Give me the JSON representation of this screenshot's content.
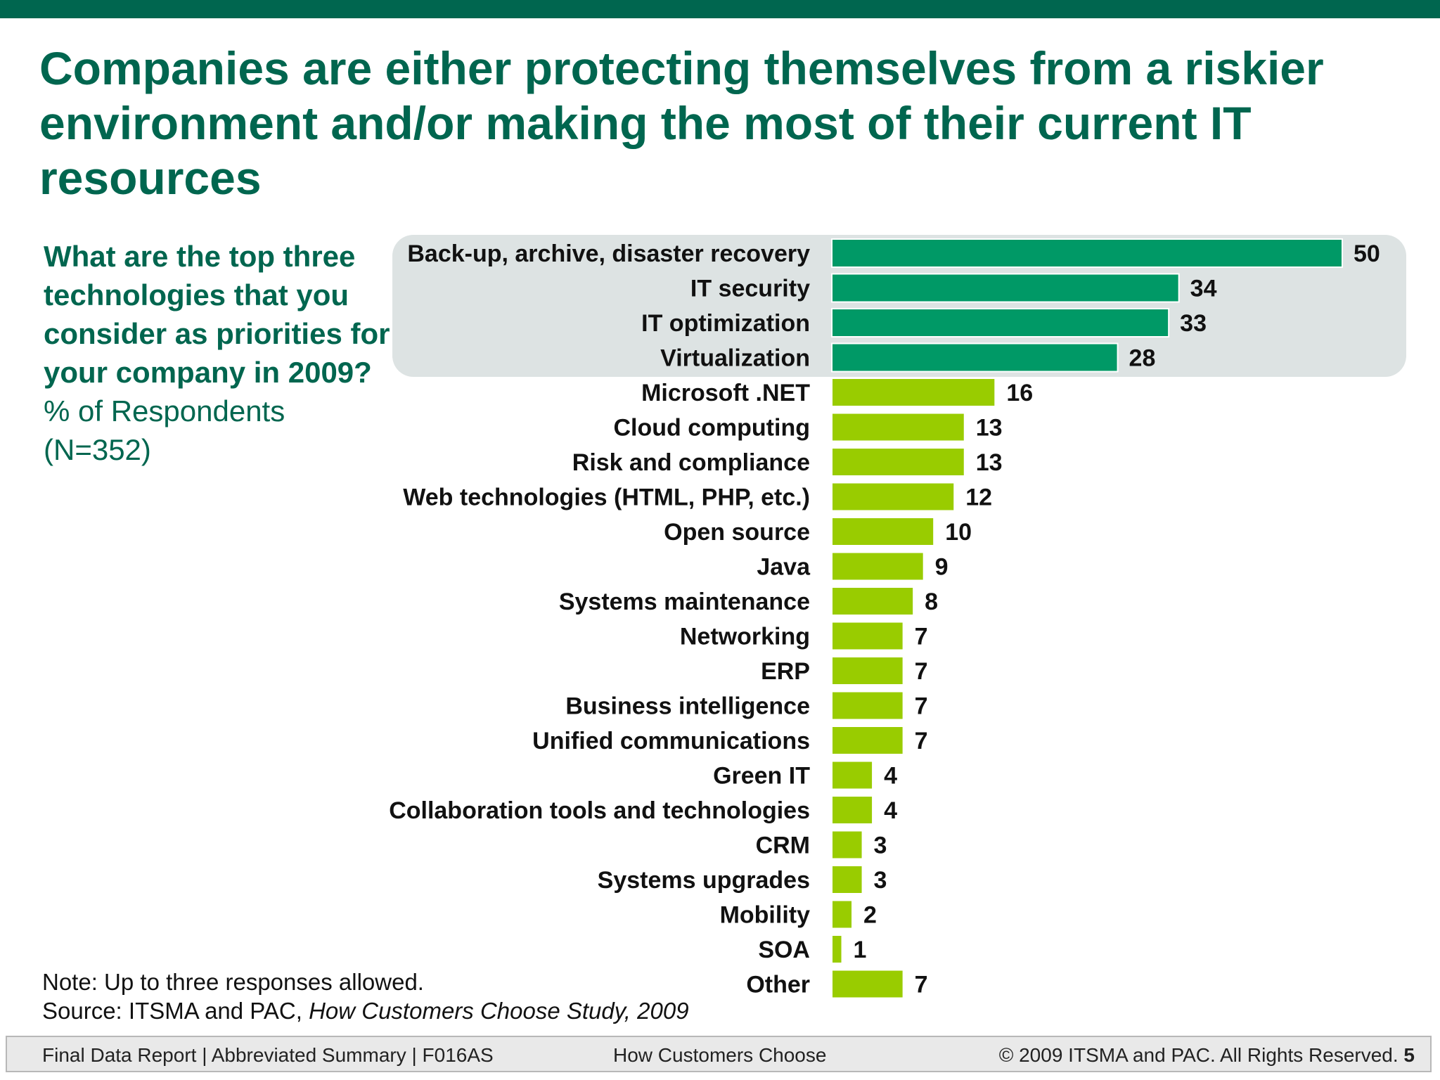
{
  "slide": {
    "title": "Companies are either protecting themselves from a riskier environment and/or making the most of their current IT resources"
  },
  "question": {
    "text": "What are the top three technologies that you consider as priorities for your company in 2009?",
    "unit": "% of Respondents",
    "sample": "(N=352)"
  },
  "notes": {
    "note": "Note: Up to three responses allowed.",
    "source_prefix": "Source: ITSMA and PAC, ",
    "source_title": "How Customers Choose Study, 2009"
  },
  "footer": {
    "left": "Final Data Report | Abbreviated Summary | F016AS",
    "center": "How Customers Choose",
    "right": "© 2009 ITSMA and PAC. All Rights Reserved.",
    "page": "5"
  },
  "colors": {
    "title": "#00664f",
    "top_band": "#00664f",
    "highlight_bar": "#009966",
    "regular_bar": "#99cc00",
    "highlight_panel": "#dde3e3"
  },
  "chart_data": {
    "type": "bar",
    "orientation": "horizontal",
    "categories": [
      "Back-up, archive, disaster recovery",
      "IT security",
      "IT optimization",
      "Virtualization",
      "Microsoft .NET",
      "Cloud computing",
      "Risk and compliance",
      "Web technologies (HTML, PHP, etc.)",
      "Open source",
      "Java",
      "Systems maintenance",
      "Networking",
      "ERP",
      "Business intelligence",
      "Unified communications",
      "Green IT",
      "Collaboration tools and technologies",
      "CRM",
      "Systems upgrades",
      "Mobility",
      "SOA",
      "Other"
    ],
    "values": [
      50,
      34,
      33,
      28,
      16,
      13,
      13,
      12,
      10,
      9,
      8,
      7,
      7,
      7,
      7,
      4,
      4,
      3,
      3,
      2,
      1,
      7
    ],
    "highlighted_count": 4,
    "xlim": [
      0,
      50
    ],
    "data_labels": true,
    "grid": false,
    "legend": "none"
  }
}
